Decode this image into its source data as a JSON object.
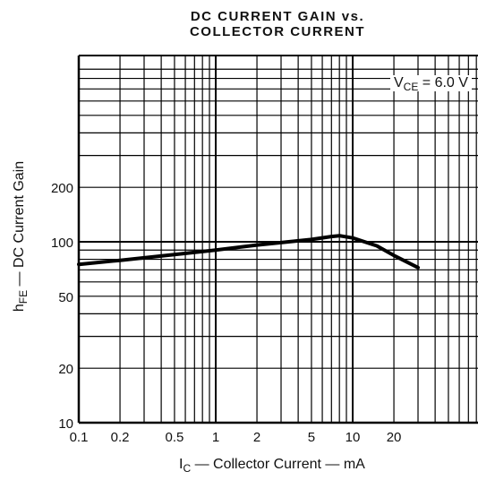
{
  "chart_data": {
    "type": "line",
    "title_line1": "DC CURRENT GAIN vs.",
    "title_line2": "COLLECTOR CURRENT",
    "xlabel_main": "I",
    "xlabel_sub": "C",
    "xlabel_rest": " — Collector Current — mA",
    "ylabel_main": "h",
    "ylabel_sub": "FE",
    "ylabel_rest": " — DC Current Gain",
    "annotation_main": "V",
    "annotation_sub": "CE",
    "annotation_rest": " = 6.0 V",
    "x_scale": "log",
    "y_scale": "log",
    "xlim": [
      0.1,
      100
    ],
    "ylim": [
      10,
      1000
    ],
    "grid": true,
    "x_ticks": [
      0.1,
      0.2,
      0.5,
      1,
      2,
      5,
      10,
      20
    ],
    "x_tick_labels": [
      "0.1",
      "0.2",
      "0.5",
      "1",
      "2",
      "5",
      "10",
      "20"
    ],
    "y_ticks": [
      10,
      20,
      50,
      100,
      200
    ],
    "y_tick_labels": [
      "10",
      "20",
      "50",
      "100",
      "200"
    ],
    "series": [
      {
        "x": [
          0.1,
          0.2,
          0.5,
          1,
          2,
          3,
          5,
          7,
          8,
          10,
          15,
          20,
          30
        ],
        "y": [
          75,
          79,
          85,
          90,
          96,
          99,
          103,
          107,
          108,
          105,
          95,
          84,
          72
        ]
      }
    ]
  }
}
